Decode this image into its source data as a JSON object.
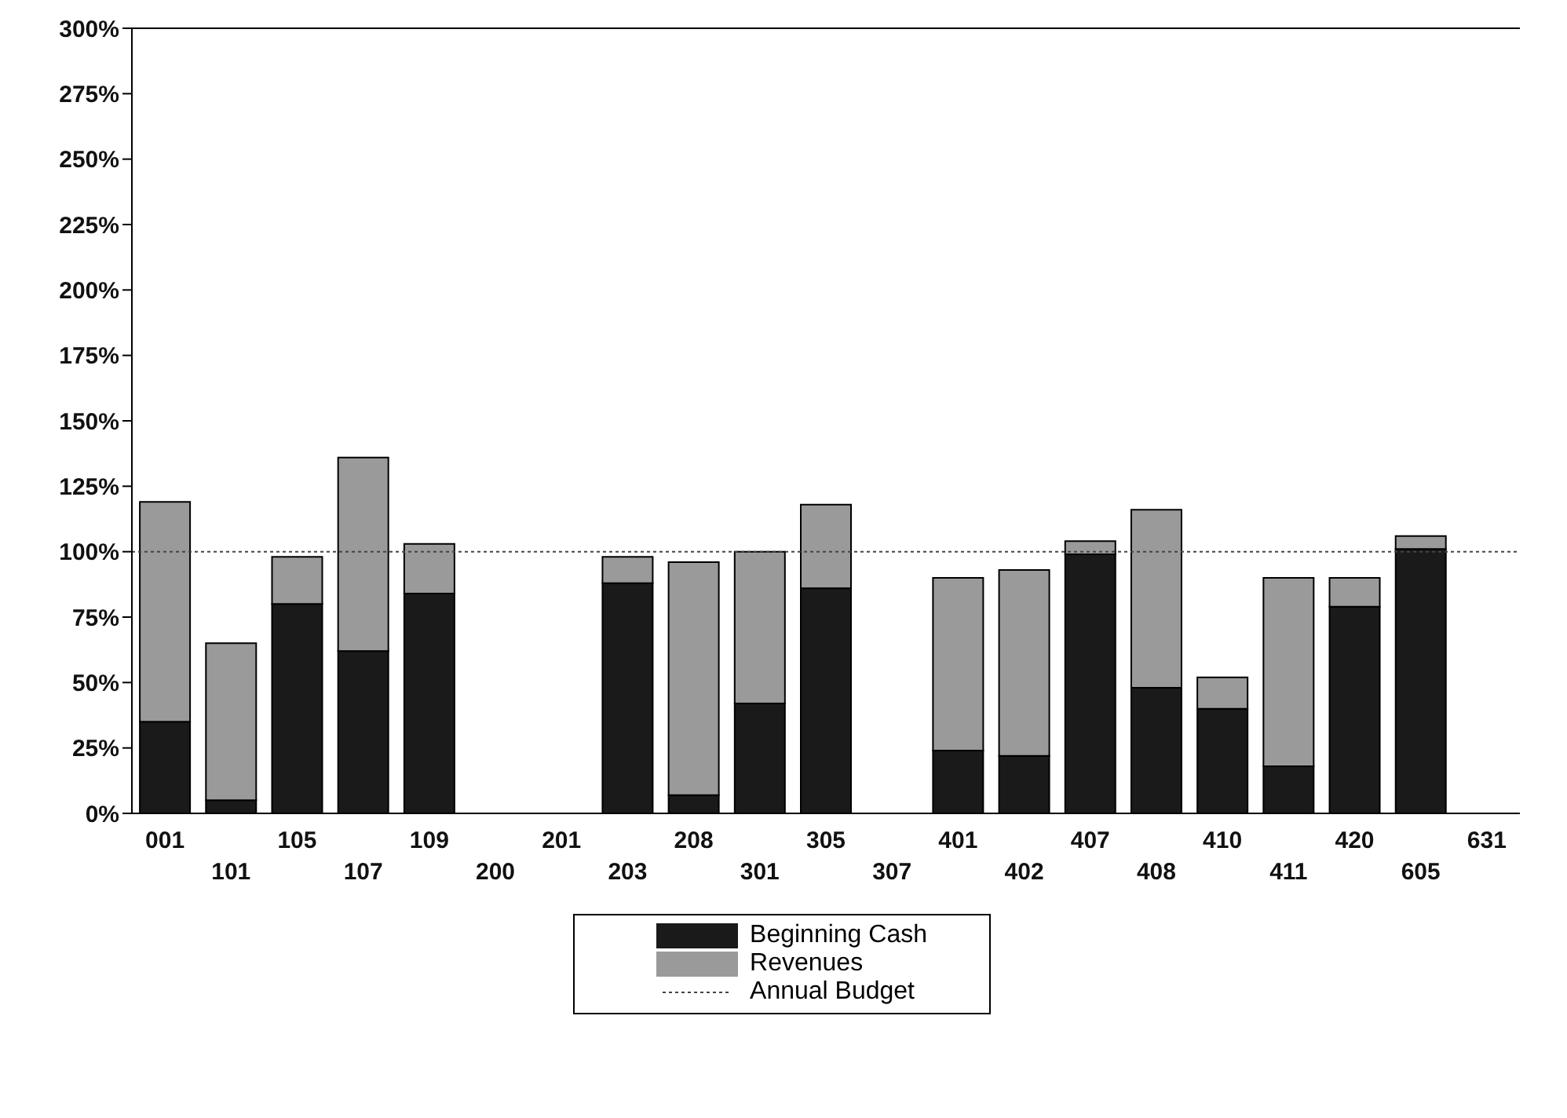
{
  "chart_data": {
    "type": "bar",
    "stacked": true,
    "categories": [
      "001",
      "101",
      "105",
      "107",
      "109",
      "200",
      "201",
      "203",
      "208",
      "301",
      "305",
      "307",
      "401",
      "402",
      "407",
      "408",
      "410",
      "411",
      "420",
      "605",
      "631"
    ],
    "series": [
      {
        "name": "Beginning Cash",
        "color": "#1a1a1a",
        "values": [
          35,
          5,
          80,
          62,
          84,
          null,
          null,
          88,
          7,
          42,
          86,
          null,
          24,
          22,
          99,
          48,
          40,
          18,
          79,
          101,
          null
        ]
      },
      {
        "name": "Revenues",
        "color": "#9a9a9a",
        "values": [
          84,
          60,
          18,
          74,
          19,
          null,
          null,
          10,
          89,
          58,
          32,
          null,
          66,
          71,
          5,
          68,
          12,
          72,
          11,
          5,
          null
        ]
      }
    ],
    "ylim": [
      0,
      300
    ],
    "yticks": [
      {
        "value": 0,
        "label": "0%"
      },
      {
        "value": 25,
        "label": "25%"
      },
      {
        "value": 50,
        "label": "50%"
      },
      {
        "value": 75,
        "label": "75%"
      },
      {
        "value": 100,
        "label": "100%"
      },
      {
        "value": 125,
        "label": "125%"
      },
      {
        "value": 150,
        "label": "150%"
      },
      {
        "value": 175,
        "label": "175%"
      },
      {
        "value": 200,
        "label": "200%"
      },
      {
        "value": 225,
        "label": "225%"
      },
      {
        "value": 250,
        "label": "250%"
      },
      {
        "value": 275,
        "label": "275%"
      },
      {
        "value": 300,
        "label": "300%"
      }
    ],
    "ref_lines": [
      {
        "axis": "y",
        "value": 100,
        "label": "Annual Budget",
        "color": "#444444",
        "line_style": "dotted"
      }
    ],
    "grid": false,
    "legend": "bottom"
  }
}
